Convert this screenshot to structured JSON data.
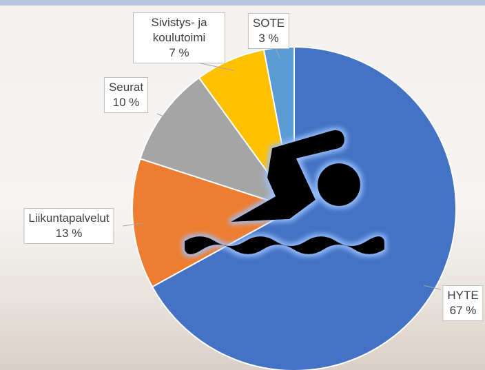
{
  "chart_data": {
    "type": "pie",
    "categories": [
      "HYTE",
      "Liikuntapalvelut",
      "Seurat",
      "Sivistys- ja koulutoimi",
      "SOTE"
    ],
    "values": [
      67,
      13,
      10,
      7,
      3
    ],
    "value_labels": [
      "67 %",
      "13 %",
      "10 %",
      "7 %",
      "3 %"
    ],
    "colors": [
      "#4472c4",
      "#ed7d31",
      "#a5a5a5",
      "#ffc000",
      "#5b9bd5"
    ]
  }
}
